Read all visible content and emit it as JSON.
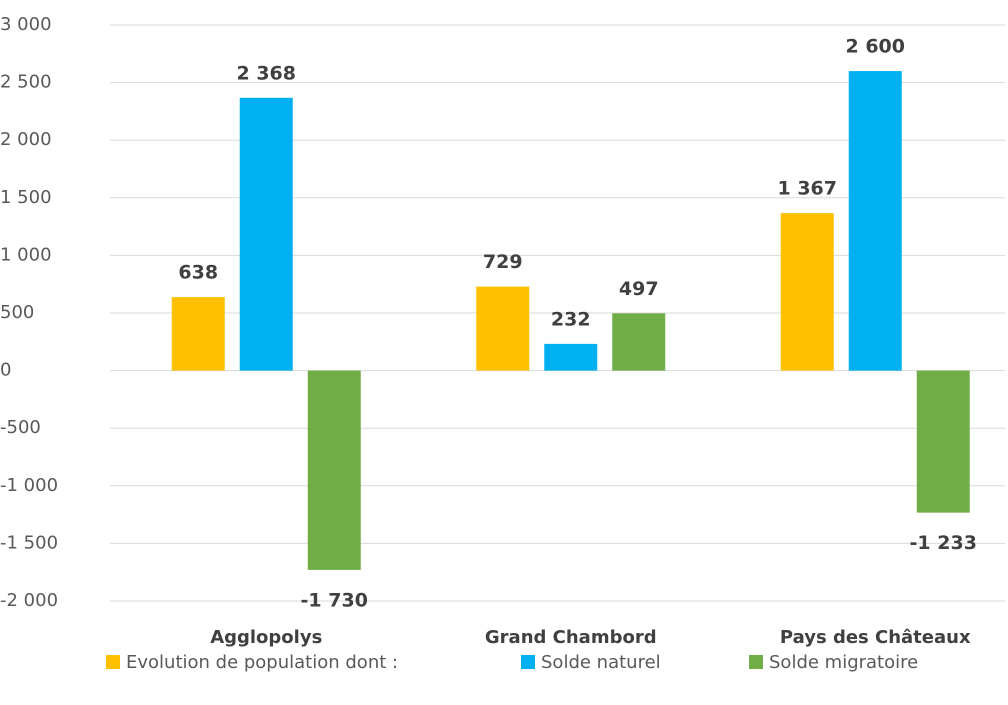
{
  "chart_data": {
    "type": "bar",
    "categories": [
      "Agglopolys",
      "Grand Chambord",
      "Pays des Châteaux"
    ],
    "series": [
      {
        "name": "Evolution de population dont :",
        "color": "#FFC000",
        "values": [
          638,
          729,
          1367
        ],
        "value_labels": [
          "638",
          "729",
          "1 367"
        ]
      },
      {
        "name": "Solde naturel",
        "color": "#00B0F0",
        "values": [
          2368,
          232,
          2600
        ],
        "value_labels": [
          "2 368",
          "232",
          "2 600"
        ]
      },
      {
        "name": "Solde migratoire",
        "color": "#70AD47",
        "values": [
          -1730,
          497,
          -1233
        ],
        "value_labels": [
          "-1 730",
          "497",
          "-1 233"
        ]
      }
    ],
    "ylim": [
      -2000,
      3000
    ],
    "yticks": [
      {
        "value": -2000,
        "label": "-2 000"
      },
      {
        "value": -1500,
        "label": "-1 500"
      },
      {
        "value": -1000,
        "label": "-1 000"
      },
      {
        "value": -500,
        "label": "-500"
      },
      0,
      500,
      {
        "value": 1000,
        "label": "1 000"
      },
      {
        "value": 1500,
        "label": "1 500"
      },
      {
        "value": 2000,
        "label": "2 000"
      },
      {
        "value": 2500,
        "label": "2 500"
      },
      {
        "value": 3000,
        "label": "3 000"
      }
    ],
    "grid": true,
    "legend": "bottom"
  }
}
